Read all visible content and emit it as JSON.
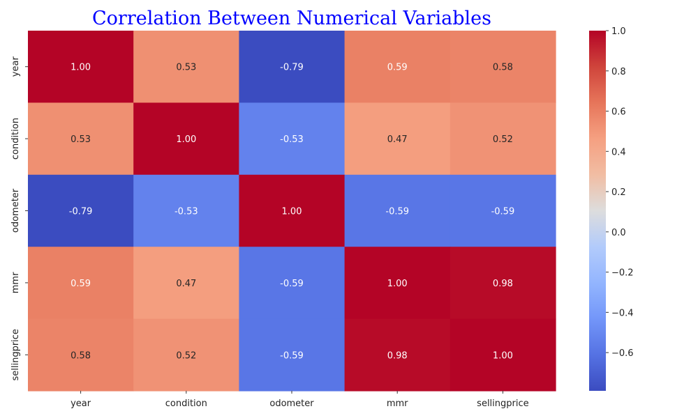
{
  "chart_data": {
    "type": "heatmap",
    "title": "Correlation Between Numerical Variables",
    "x_categories": [
      "year",
      "condition",
      "odometer",
      "mmr",
      "sellingprice"
    ],
    "y_categories": [
      "year",
      "condition",
      "odometer",
      "mmr",
      "sellingprice"
    ],
    "values": [
      [
        1.0,
        0.53,
        -0.79,
        0.59,
        0.58
      ],
      [
        0.53,
        1.0,
        -0.53,
        0.47,
        0.52
      ],
      [
        -0.79,
        -0.53,
        1.0,
        -0.59,
        -0.59
      ],
      [
        0.59,
        0.47,
        -0.59,
        1.0,
        0.98
      ],
      [
        0.58,
        0.52,
        -0.59,
        0.98,
        1.0
      ]
    ],
    "value_format": "2 decimals",
    "colormap": "coolwarm",
    "colorbar": {
      "range": [
        -0.79,
        1.0
      ],
      "ticks": [
        1.0,
        0.8,
        0.6,
        0.4,
        0.2,
        0.0,
        -0.2,
        -0.4,
        -0.6
      ],
      "tick_labels": [
        "1.0",
        "0.8",
        "0.6",
        "0.4",
        "0.2",
        "0.0",
        "−0.2",
        "−0.4",
        "−0.6"
      ],
      "placement": "right"
    }
  }
}
